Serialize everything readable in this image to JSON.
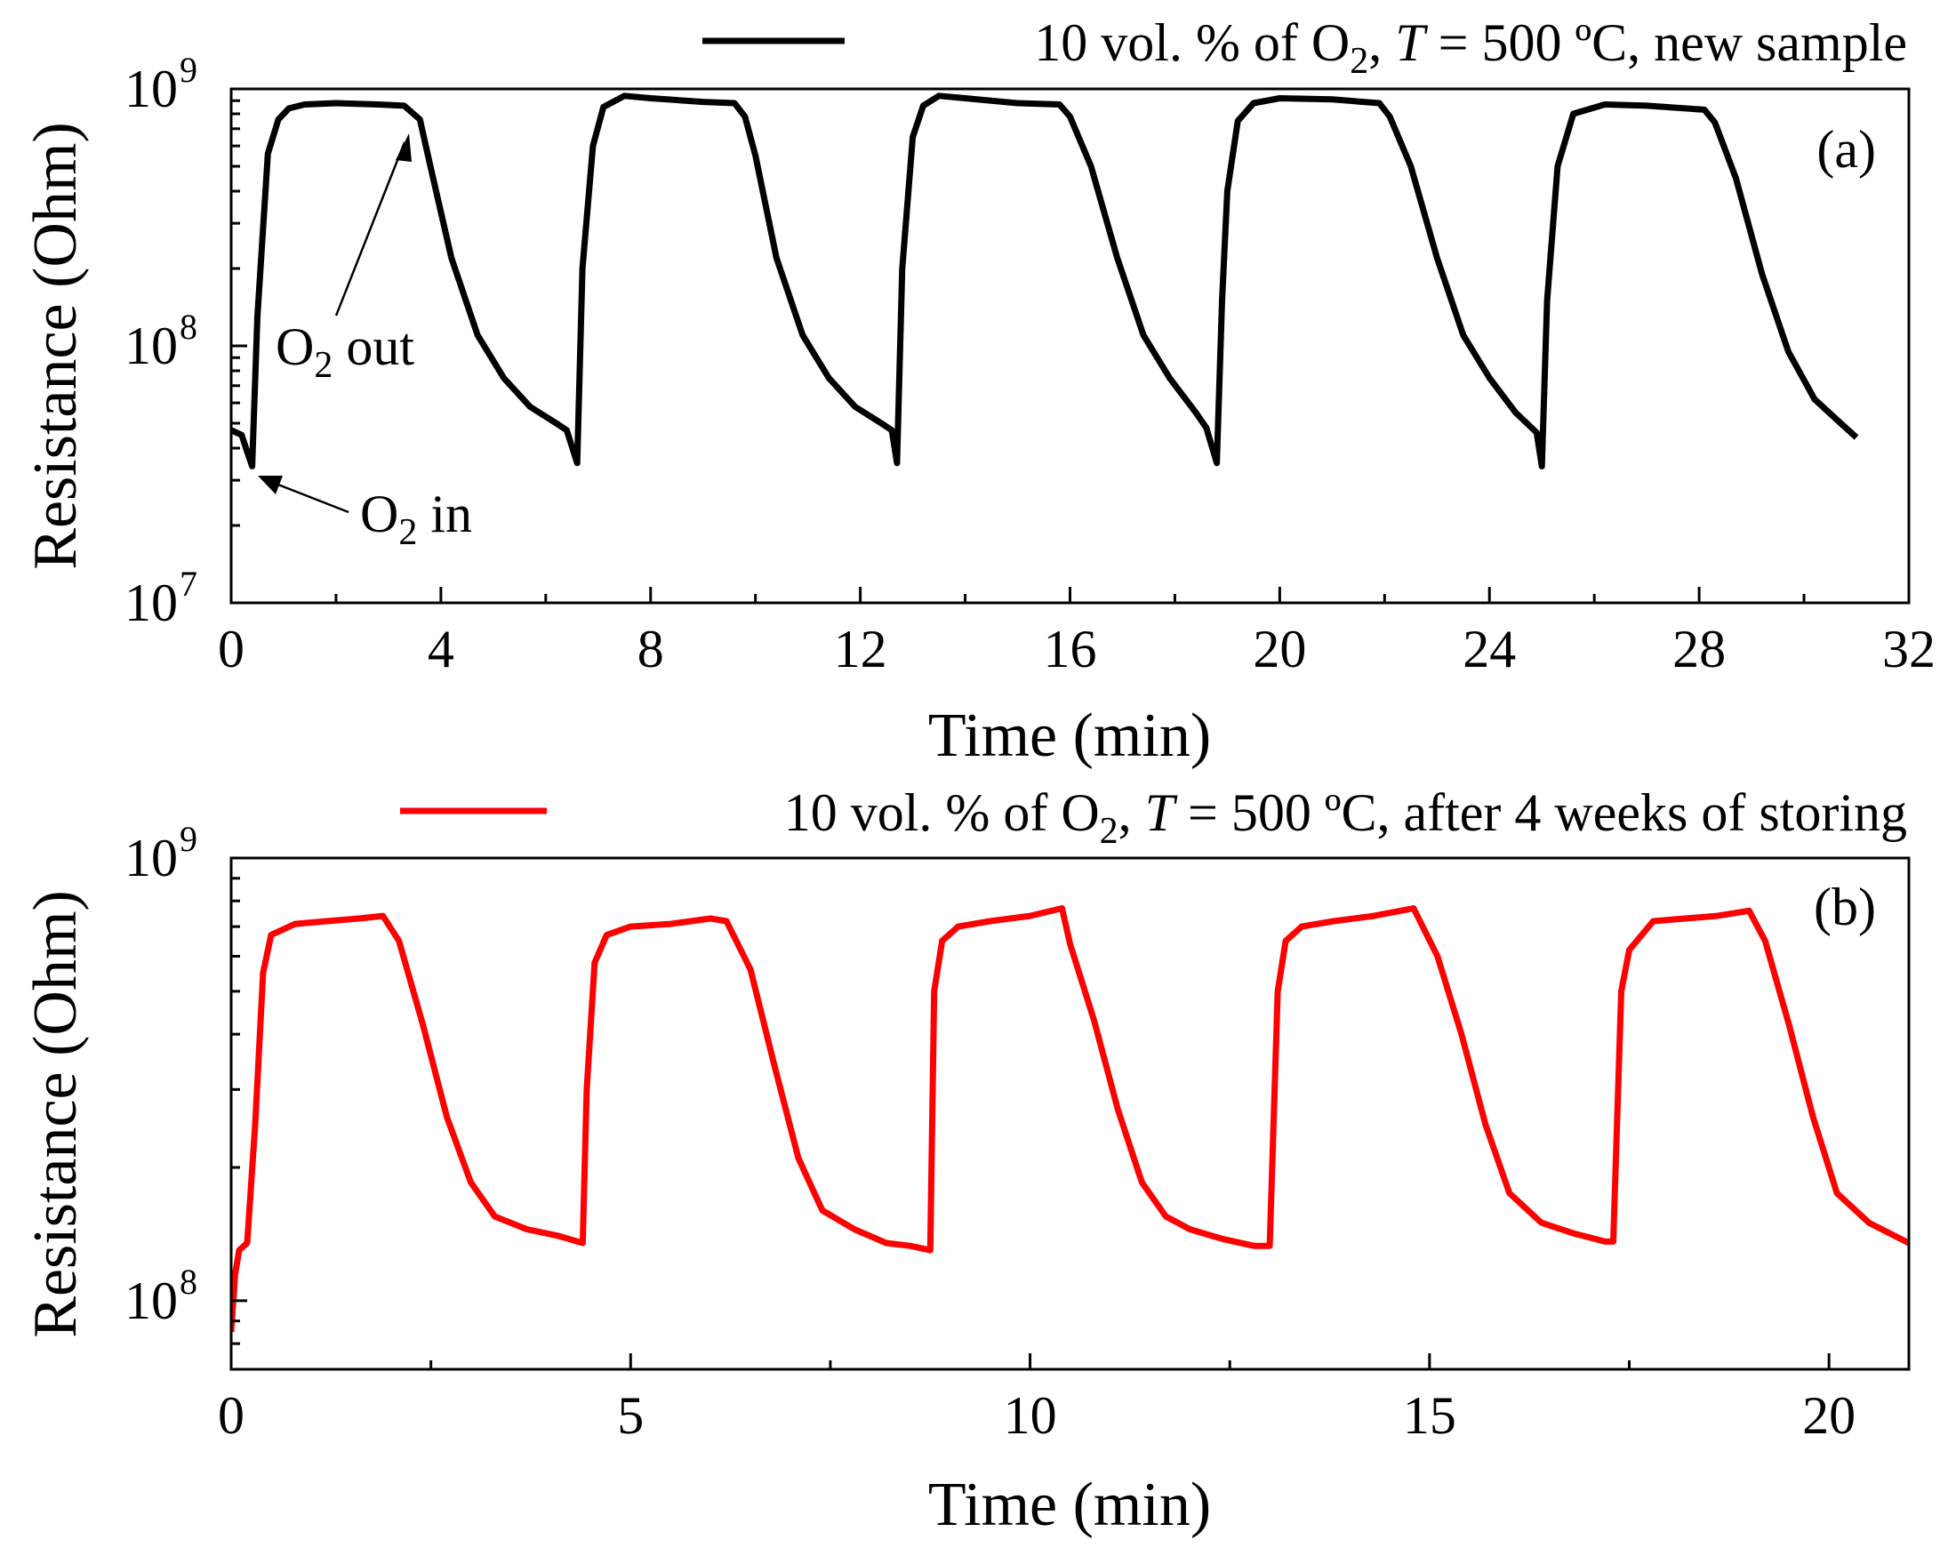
{
  "chart_data": [
    {
      "panel_label": "(a)",
      "type": "line",
      "xlabel": "Time (min)",
      "ylabel": "Resistance (Ohm)",
      "xlim": [
        0,
        32
      ],
      "ylim": [
        10000000,
        1000000000
      ],
      "yscale": "log",
      "x_ticks": [
        "0",
        "4",
        "8",
        "12",
        "16",
        "20",
        "24",
        "28",
        "32"
      ],
      "y_ticks": [
        {
          "base": "10",
          "exp": "7"
        },
        {
          "base": "10",
          "exp": "8"
        },
        {
          "base": "10",
          "exp": "9"
        }
      ],
      "grid": false,
      "legend_position": "top-right",
      "series": [
        {
          "name_parts": {
            "pre": "10 vol. % of O",
            "sub": "2",
            "mid": ", ",
            "ital": "T",
            "post": " = 500 ºC, new sample"
          },
          "color": "#000000",
          "x": [
            0,
            0.2,
            0.3,
            0.4,
            0.5,
            0.7,
            0.9,
            1.1,
            1.4,
            2.0,
            2.8,
            3.3,
            3.6,
            3.8,
            4.2,
            4.7,
            5.2,
            5.7,
            6.2,
            6.4,
            6.6,
            6.7,
            6.9,
            7.1,
            7.5,
            8.0,
            9.0,
            9.6,
            9.8,
            10.0,
            10.4,
            10.9,
            11.4,
            11.9,
            12.4,
            12.6,
            12.7,
            12.8,
            13.0,
            13.2,
            13.5,
            14.0,
            15.0,
            15.8,
            16.0,
            16.4,
            16.9,
            17.4,
            17.9,
            18.4,
            18.6,
            18.8,
            18.9,
            19.0,
            19.2,
            19.5,
            20.0,
            21.0,
            21.9,
            22.1,
            22.5,
            23.0,
            23.5,
            24.0,
            24.5,
            24.9,
            25.0,
            25.1,
            25.3,
            25.6,
            26.2,
            27.0,
            28.1,
            28.3,
            28.7,
            29.2,
            29.7,
            30.2,
            30.7,
            31.0
          ],
          "y": [
            47000000,
            45000000,
            39000000,
            34000000,
            130000000,
            560000000,
            760000000,
            840000000,
            870000000,
            880000000,
            870000000,
            860000000,
            760000000,
            500000000,
            220000000,
            110000000,
            75000000,
            58000000,
            50000000,
            47000000,
            35000000,
            200000000,
            600000000,
            850000000,
            940000000,
            920000000,
            890000000,
            880000000,
            780000000,
            550000000,
            220000000,
            110000000,
            75000000,
            58000000,
            50000000,
            47000000,
            35000000,
            200000000,
            650000000,
            860000000,
            940000000,
            920000000,
            880000000,
            870000000,
            780000000,
            500000000,
            220000000,
            110000000,
            75000000,
            55000000,
            48000000,
            35000000,
            150000000,
            400000000,
            750000000,
            880000000,
            920000000,
            910000000,
            880000000,
            780000000,
            500000000,
            220000000,
            110000000,
            75000000,
            55000000,
            46000000,
            34000000,
            150000000,
            500000000,
            800000000,
            870000000,
            860000000,
            830000000,
            740000000,
            450000000,
            190000000,
            95000000,
            62000000,
            50000000,
            44000000
          ]
        }
      ],
      "annotations": [
        {
          "text_parts": {
            "pre": "O",
            "sub": "2",
            "post": " out"
          },
          "arrow_to_x": 3.3,
          "arrow_to_y": 850000000
        },
        {
          "text_parts": {
            "pre": "O",
            "sub": "2",
            "post": " in"
          },
          "arrow_to_x": 0.4,
          "arrow_to_y": 33000000
        }
      ]
    },
    {
      "panel_label": "(b)",
      "type": "line",
      "xlabel": "Time (min)",
      "ylabel": "Resistance (Ohm)",
      "xlim": [
        0,
        21
      ],
      "ylim": [
        70000000,
        1000000000
      ],
      "yscale": "log",
      "x_ticks": [
        "0",
        "5",
        "10",
        "15",
        "20"
      ],
      "y_ticks": [
        {
          "base": "10",
          "exp": "8"
        },
        {
          "base": "10",
          "exp": "9"
        }
      ],
      "grid": false,
      "legend_position": "top-right",
      "series": [
        {
          "name_parts": {
            "pre": "10 vol. % of O",
            "sub": "2",
            "mid": ", ",
            "ital": "T",
            "post": " = 500 ºC, after 4 weeks of storing"
          },
          "color": "#ff0000",
          "x": [
            0,
            0.05,
            0.1,
            0.2,
            0.3,
            0.4,
            0.5,
            0.8,
            1.2,
            1.6,
            1.9,
            2.1,
            2.4,
            2.7,
            3.0,
            3.3,
            3.7,
            4.1,
            4.4,
            4.45,
            4.55,
            4.7,
            5.0,
            5.5,
            6.0,
            6.2,
            6.5,
            6.8,
            7.1,
            7.4,
            7.8,
            8.2,
            8.5,
            8.75,
            8.8,
            8.9,
            9.1,
            9.5,
            10.0,
            10.4,
            10.5,
            10.8,
            11.1,
            11.4,
            11.7,
            12.0,
            12.4,
            12.8,
            13.0,
            13.1,
            13.2,
            13.4,
            13.8,
            14.3,
            14.8,
            15.1,
            15.4,
            15.7,
            16.0,
            16.4,
            16.8,
            17.2,
            17.3,
            17.4,
            17.5,
            17.8,
            18.2,
            18.6,
            19.0,
            19.2,
            19.5,
            19.8,
            20.1,
            20.5,
            21.0
          ],
          "y": [
            85000000,
            115000000,
            130000000,
            135000000,
            250000000,
            550000000,
            670000000,
            710000000,
            720000000,
            730000000,
            740000000,
            650000000,
            420000000,
            260000000,
            185000000,
            155000000,
            145000000,
            140000000,
            135000000,
            300000000,
            580000000,
            670000000,
            700000000,
            710000000,
            730000000,
            720000000,
            560000000,
            340000000,
            210000000,
            160000000,
            145000000,
            135000000,
            133000000,
            130000000,
            500000000,
            650000000,
            700000000,
            720000000,
            740000000,
            770000000,
            640000000,
            430000000,
            270000000,
            185000000,
            155000000,
            145000000,
            138000000,
            133000000,
            133000000,
            500000000,
            650000000,
            700000000,
            720000000,
            740000000,
            770000000,
            600000000,
            400000000,
            250000000,
            175000000,
            150000000,
            142000000,
            136000000,
            136000000,
            500000000,
            620000000,
            720000000,
            730000000,
            740000000,
            760000000,
            650000000,
            420000000,
            260000000,
            175000000,
            150000000,
            135000000
          ]
        }
      ],
      "annotations": []
    }
  ]
}
